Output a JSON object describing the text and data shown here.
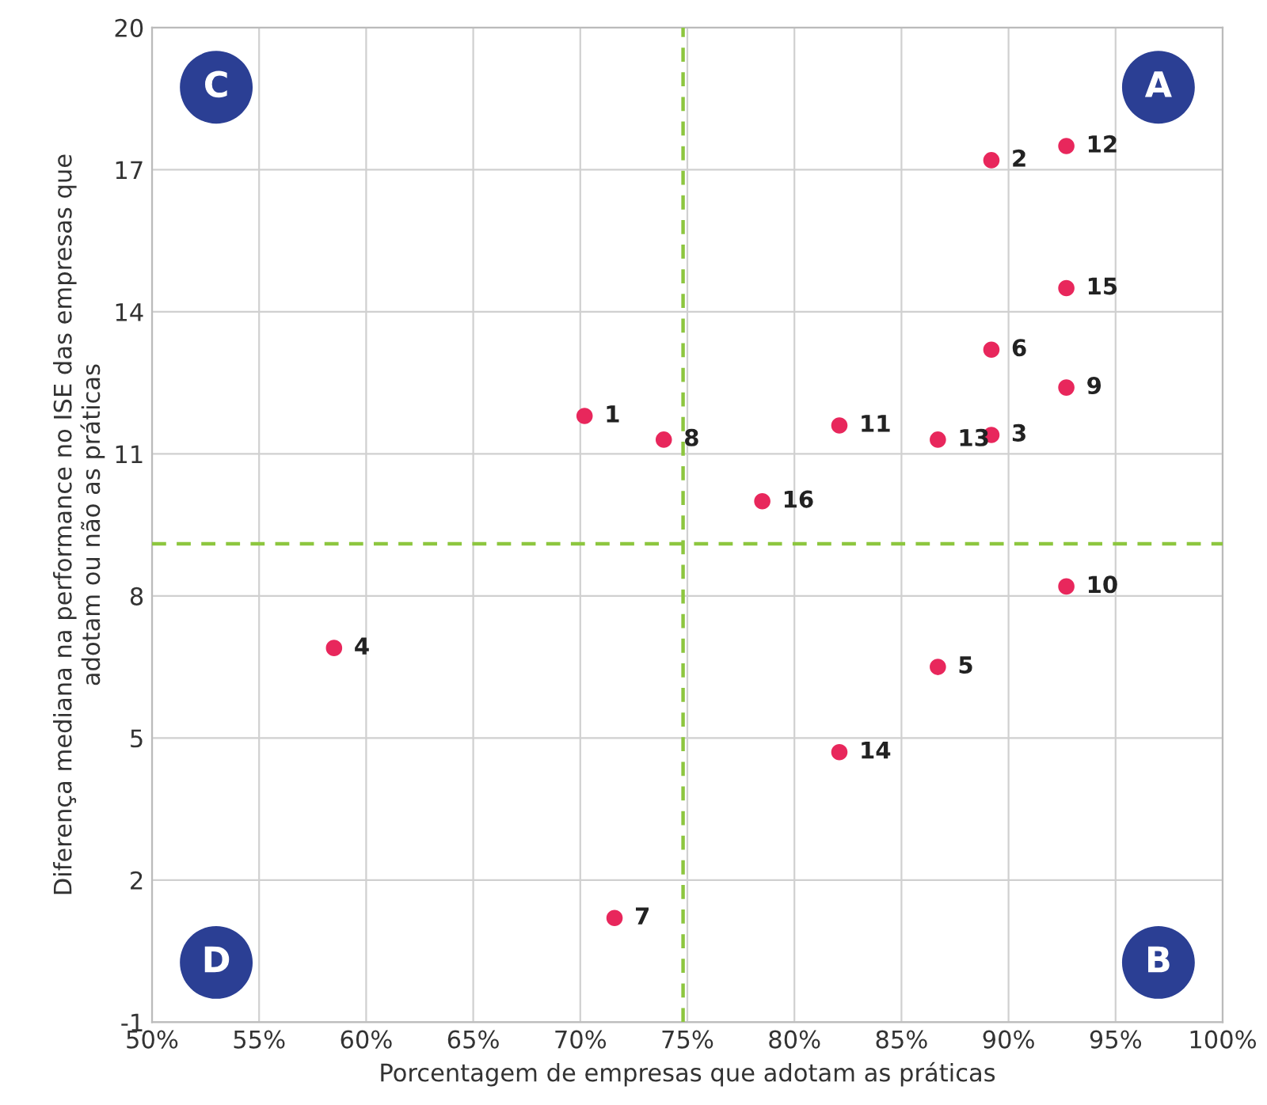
{
  "chart_data": {
    "type": "scatter",
    "xlabel": "Porcentagem de empresas que adotam as práticas",
    "ylabel": "Diferença mediana na performance no ISE das empresas que\nadotam ou não as práticas",
    "series": [
      {
        "color": "#e8275c",
        "x": [
          70.2,
          89.2,
          89.2,
          58.5,
          86.7,
          89.2,
          71.6,
          73.9,
          92.7,
          92.7,
          82.1,
          92.7,
          86.7,
          82.1,
          92.7,
          78.5
        ],
        "values": [
          11.8,
          17.2,
          11.4,
          6.9,
          6.5,
          13.2,
          1.2,
          11.3,
          12.4,
          8.2,
          11.6,
          17.5,
          11.3,
          4.7,
          14.5,
          10.0
        ]
      }
    ],
    "xlim": [
      50,
      100
    ],
    "xticks": [
      {
        "value": 50,
        "label": "50%"
      },
      {
        "value": 55,
        "label": "55%"
      },
      {
        "value": 60,
        "label": "60%"
      },
      {
        "value": 65,
        "label": "65%"
      },
      {
        "value": 70,
        "label": "70%"
      },
      {
        "value": 75,
        "label": "75%"
      },
      {
        "value": 80,
        "label": "80%"
      },
      {
        "value": 85,
        "label": "85%"
      },
      {
        "value": 90,
        "label": "90%"
      },
      {
        "value": 95,
        "label": "95%"
      },
      {
        "value": 100,
        "label": "100%"
      }
    ],
    "ylim": [
      -1,
      20
    ],
    "yticks": [
      -1,
      2,
      5,
      8,
      11,
      14,
      17,
      20
    ],
    "ref_lines": [
      {
        "axis": "x",
        "value": 74.8,
        "color": "#8dc63f",
        "line_style": "dashed"
      },
      {
        "axis": "y",
        "value": 9.1,
        "color": "#8dc63f",
        "line_style": "dashed"
      }
    ],
    "annotations": [
      "A",
      "B",
      "C",
      "D",
      {
        "text": "1",
        "x": 70.2,
        "y": 11.8
      },
      {
        "text": "2",
        "x": 89.2,
        "y": 17.2
      },
      {
        "text": "3",
        "x": 89.2,
        "y": 11.4
      },
      {
        "text": "4",
        "x": 58.5,
        "y": 6.9
      },
      {
        "text": "5",
        "x": 86.7,
        "y": 6.5
      },
      {
        "text": "6",
        "x": 89.2,
        "y": 13.2
      },
      {
        "text": "7",
        "x": 71.6,
        "y": 1.2
      },
      {
        "text": "8",
        "x": 73.9,
        "y": 11.3
      },
      {
        "text": "9",
        "x": 92.7,
        "y": 12.4
      },
      {
        "text": "10",
        "x": 92.7,
        "y": 8.2
      },
      {
        "text": "11",
        "x": 82.1,
        "y": 11.6
      },
      {
        "text": "12",
        "x": 92.7,
        "y": 17.5
      },
      {
        "text": "13",
        "x": 86.7,
        "y": 11.3
      },
      {
        "text": "14",
        "x": 82.1,
        "y": 4.7
      },
      {
        "text": "15",
        "x": 92.7,
        "y": 14.5
      },
      {
        "text": "16",
        "x": 78.5,
        "y": 10.0
      }
    ],
    "grid": true,
    "marker": "circle"
  }
}
